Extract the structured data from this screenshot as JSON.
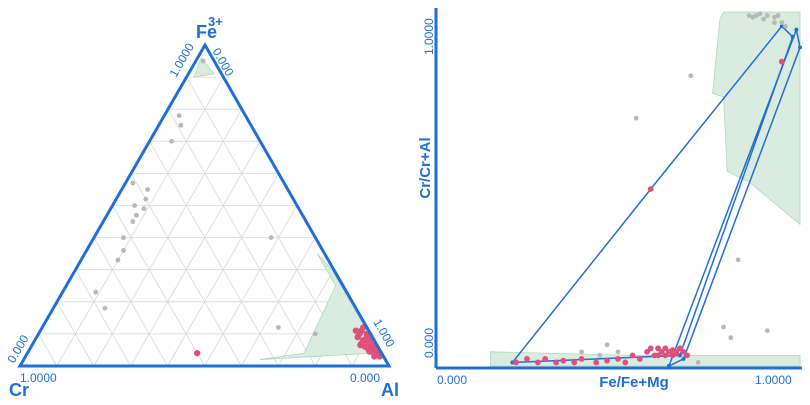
{
  "colors": {
    "frame": "#1f6fd6",
    "grid": "#d8d8d8",
    "field": "#d6ebdd",
    "field_edge": "#a9d3b6",
    "primary": "#e0507a",
    "secondary": "#b8b8b8"
  },
  "chart_data": [
    {
      "type": "ternary",
      "vertex_labels": {
        "top": "Fe",
        "top_superscript": "3+",
        "left": "Cr",
        "right": "Al"
      },
      "edge_tick_labels": {
        "left_top": "1.0000",
        "right_top": "0.000",
        "left_bottom": "0.000",
        "bottom_left": "1.0000",
        "bottom_right": "0.000",
        "right_bottom": "1.000"
      },
      "grid": true,
      "grid_divisions": 10,
      "field_polygon": [
        [
          0.02,
          0.34,
          0.64
        ],
        [
          0.04,
          0.02,
          0.94
        ],
        [
          0.05,
          0.005,
          0.945
        ],
        [
          0.3,
          0.005,
          0.695
        ],
        [
          0.35,
          0.02,
          0.63
        ],
        [
          0.25,
          0.02,
          0.73
        ],
        [
          0.04,
          0.21,
          0.75
        ]
      ],
      "apex_field_polygon": [
        [
          0.96,
          0.03,
          0.01
        ],
        [
          0.9,
          0.08,
          0.02
        ],
        [
          0.91,
          0.02,
          0.07
        ]
      ],
      "series": [
        {
          "points": [
            [
              0.08,
              0.02,
              0.9
            ],
            [
              0.05,
              0.01,
              0.94
            ],
            [
              0.1,
              0.03,
              0.87
            ],
            [
              0.07,
              0.04,
              0.89
            ],
            [
              0.04,
              0.01,
              0.95
            ],
            [
              0.06,
              0.02,
              0.92
            ],
            [
              0.09,
              0.015,
              0.895
            ],
            [
              0.03,
              0.01,
              0.96
            ],
            [
              0.05,
              0.03,
              0.92
            ],
            [
              0.07,
              0.01,
              0.92
            ],
            [
              0.11,
              0.02,
              0.87
            ],
            [
              0.08,
              0.005,
              0.915
            ],
            [
              0.04,
              0.02,
              0.94
            ],
            [
              0.06,
              0.005,
              0.935
            ],
            [
              0.09,
              0.04,
              0.87
            ],
            [
              0.12,
              0.01,
              0.87
            ],
            [
              0.035,
              0.005,
              0.96
            ],
            [
              0.06,
              0.035,
              0.905
            ],
            [
              0.1,
              0.01,
              0.89
            ],
            [
              0.05,
              0.015,
              0.935
            ],
            [
              0.08,
              0.03,
              0.89
            ],
            [
              0.07,
              0.02,
              0.91
            ],
            [
              0.045,
              0.03,
              0.925
            ],
            [
              0.095,
              0.005,
              0.9
            ],
            [
              0.065,
              0.045,
              0.89
            ],
            [
              0.03,
              0.025,
              0.945
            ],
            [
              0.11,
              0.035,
              0.855
            ],
            [
              0.085,
              0.012,
              0.903
            ],
            [
              0.055,
              0.008,
              0.937
            ],
            [
              0.04,
              0.5,
              0.46
            ]
          ]
        },
        {
          "points": [
            [
              0.95,
              0.03,
              0.02
            ],
            [
              0.78,
              0.18,
              0.04
            ],
            [
              0.75,
              0.19,
              0.06
            ],
            [
              0.7,
              0.24,
              0.06
            ],
            [
              0.55,
              0.38,
              0.07
            ],
            [
              0.52,
              0.4,
              0.08
            ],
            [
              0.5,
              0.44,
              0.06
            ],
            [
              0.49,
              0.42,
              0.09
            ],
            [
              0.45,
              0.47,
              0.08
            ],
            [
              0.4,
              0.52,
              0.08
            ],
            [
              0.36,
              0.54,
              0.1
            ],
            [
              0.33,
              0.57,
              0.1
            ],
            [
              0.23,
              0.68,
              0.09
            ],
            [
              0.18,
              0.68,
              0.14
            ],
            [
              0.4,
              0.12,
              0.48
            ],
            [
              0.12,
              0.24,
              0.64
            ],
            [
              0.1,
              0.15,
              0.75
            ],
            [
              0.57,
              0.41,
              0.02
            ],
            [
              0.47,
              0.45,
              0.08
            ]
          ]
        }
      ]
    },
    {
      "type": "scatter",
      "xlabel": "Fe/Fe+Mg",
      "ylabel": "Cr/Cr+Al",
      "xlim": [
        0,
        1
      ],
      "ylim": [
        0,
        1
      ],
      "x_ticks": [
        "0.000",
        "1.0000"
      ],
      "y_ticks": [
        "0.000",
        "1.0000"
      ],
      "field_polygon": [
        [
          0.15,
          0.0
        ],
        [
          0.15,
          0.04
        ],
        [
          0.55,
          0.03
        ],
        [
          0.78,
          0.03
        ],
        [
          1.0,
          0.03
        ],
        [
          1.0,
          0.0
        ]
      ],
      "field_polygon_2": [
        [
          0.79,
          1.0
        ],
        [
          1.0,
          1.0
        ],
        [
          1.0,
          0.4
        ],
        [
          0.86,
          0.52
        ],
        [
          0.8,
          0.55
        ],
        [
          0.79,
          0.76
        ],
        [
          0.76,
          0.77
        ],
        [
          0.78,
          0.98
        ]
      ],
      "envelopes": [
        {
          "points": [
            [
              0.21,
              0.01
            ],
            [
              0.67,
              0.03
            ],
            [
              0.98,
              0.93
            ],
            [
              0.95,
              0.96
            ],
            [
              0.59,
              0.5
            ],
            [
              0.21,
              0.01
            ]
          ]
        },
        {
          "points": [
            [
              0.64,
              0.0
            ],
            [
              0.68,
              0.02
            ],
            [
              1.0,
              0.9
            ],
            [
              0.99,
              0.95
            ],
            [
              0.64,
              0.0
            ]
          ]
        }
      ],
      "series": [
        {
          "points": [
            [
              0.22,
              0.01
            ],
            [
              0.25,
              0.02
            ],
            [
              0.28,
              0.01
            ],
            [
              0.3,
              0.02
            ],
            [
              0.33,
              0.01
            ],
            [
              0.35,
              0.015
            ],
            [
              0.38,
              0.01
            ],
            [
              0.4,
              0.02
            ],
            [
              0.44,
              0.01
            ],
            [
              0.47,
              0.015
            ],
            [
              0.5,
              0.02
            ],
            [
              0.52,
              0.01
            ],
            [
              0.54,
              0.03
            ],
            [
              0.56,
              0.02
            ],
            [
              0.58,
              0.04
            ],
            [
              0.6,
              0.03
            ],
            [
              0.61,
              0.05
            ],
            [
              0.62,
              0.04
            ],
            [
              0.63,
              0.03
            ],
            [
              0.64,
              0.04
            ],
            [
              0.65,
              0.045
            ],
            [
              0.66,
              0.035
            ],
            [
              0.67,
              0.05
            ],
            [
              0.68,
              0.04
            ],
            [
              0.69,
              0.03
            ],
            [
              0.63,
              0.05
            ],
            [
              0.61,
              0.03
            ],
            [
              0.66,
              0.04
            ],
            [
              0.59,
              0.05
            ],
            [
              0.65,
              0.03
            ],
            [
              0.95,
              0.86
            ],
            [
              0.59,
              0.5
            ]
          ]
        },
        {
          "points": [
            [
              0.86,
              0.99
            ],
            [
              0.87,
              0.985
            ],
            [
              0.88,
              0.99
            ],
            [
              0.89,
              0.995
            ],
            [
              0.9,
              0.98
            ],
            [
              0.91,
              0.99
            ],
            [
              0.93,
              0.985
            ],
            [
              0.94,
              0.99
            ],
            [
              0.95,
              0.97
            ],
            [
              0.96,
              0.96
            ],
            [
              0.93,
              0.97
            ],
            [
              0.7,
              0.82
            ],
            [
              0.55,
              0.7
            ],
            [
              0.83,
              0.3
            ],
            [
              0.81,
              0.08
            ],
            [
              0.79,
              0.11
            ],
            [
              0.4,
              0.04
            ],
            [
              0.47,
              0.06
            ],
            [
              0.5,
              0.04
            ],
            [
              0.45,
              0.03
            ],
            [
              0.91,
              0.1
            ],
            [
              0.72,
              0.01
            ]
          ]
        }
      ]
    }
  ]
}
